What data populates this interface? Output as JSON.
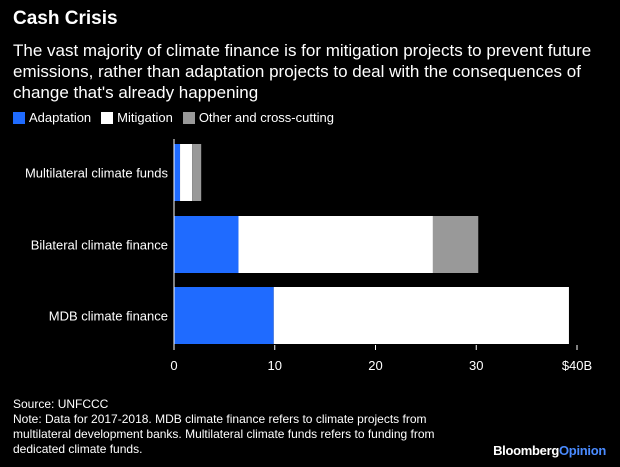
{
  "header": {
    "title": "Cash Crisis",
    "subtitle": "The vast majority of climate finance is for mitigation projects to prevent future emissions, rather than adaptation projects to deal with the consequences of change that's already happening"
  },
  "footer": {
    "source": "Source: UNFCCC",
    "note": "Note: Data for 2017-2018. MDB climate finance refers to climate projects from multilateral development banks. Multilateral climate funds refers to funding from dedicated climate funds.",
    "logo_part1": "Bloomberg",
    "logo_part2": "Opinion"
  },
  "chart_data": {
    "type": "bar",
    "orientation": "horizontal",
    "stacked": true,
    "title": "Cash Crisis",
    "categories": [
      "Multilateral climate funds",
      "Bilateral climate finance",
      "MDB climate finance"
    ],
    "series": [
      {
        "name": "Adaptation",
        "color": "#1f6bff",
        "values": [
          0.6,
          6.4,
          9.9
        ]
      },
      {
        "name": "Mitigation",
        "color": "#ffffff",
        "values": [
          1.2,
          19.3,
          29.3
        ]
      },
      {
        "name": "Other and cross-cutting",
        "color": "#999999",
        "values": [
          0.9,
          4.5,
          0
        ]
      }
    ],
    "xlim": [
      0,
      40
    ],
    "xticks": [
      {
        "value": 0,
        "label": "0"
      },
      {
        "value": 10,
        "label": "10"
      },
      {
        "value": 20,
        "label": "20"
      },
      {
        "value": 30,
        "label": "30"
      },
      {
        "value": 40,
        "label": "$40B"
      }
    ],
    "legend_position": "top-left"
  }
}
